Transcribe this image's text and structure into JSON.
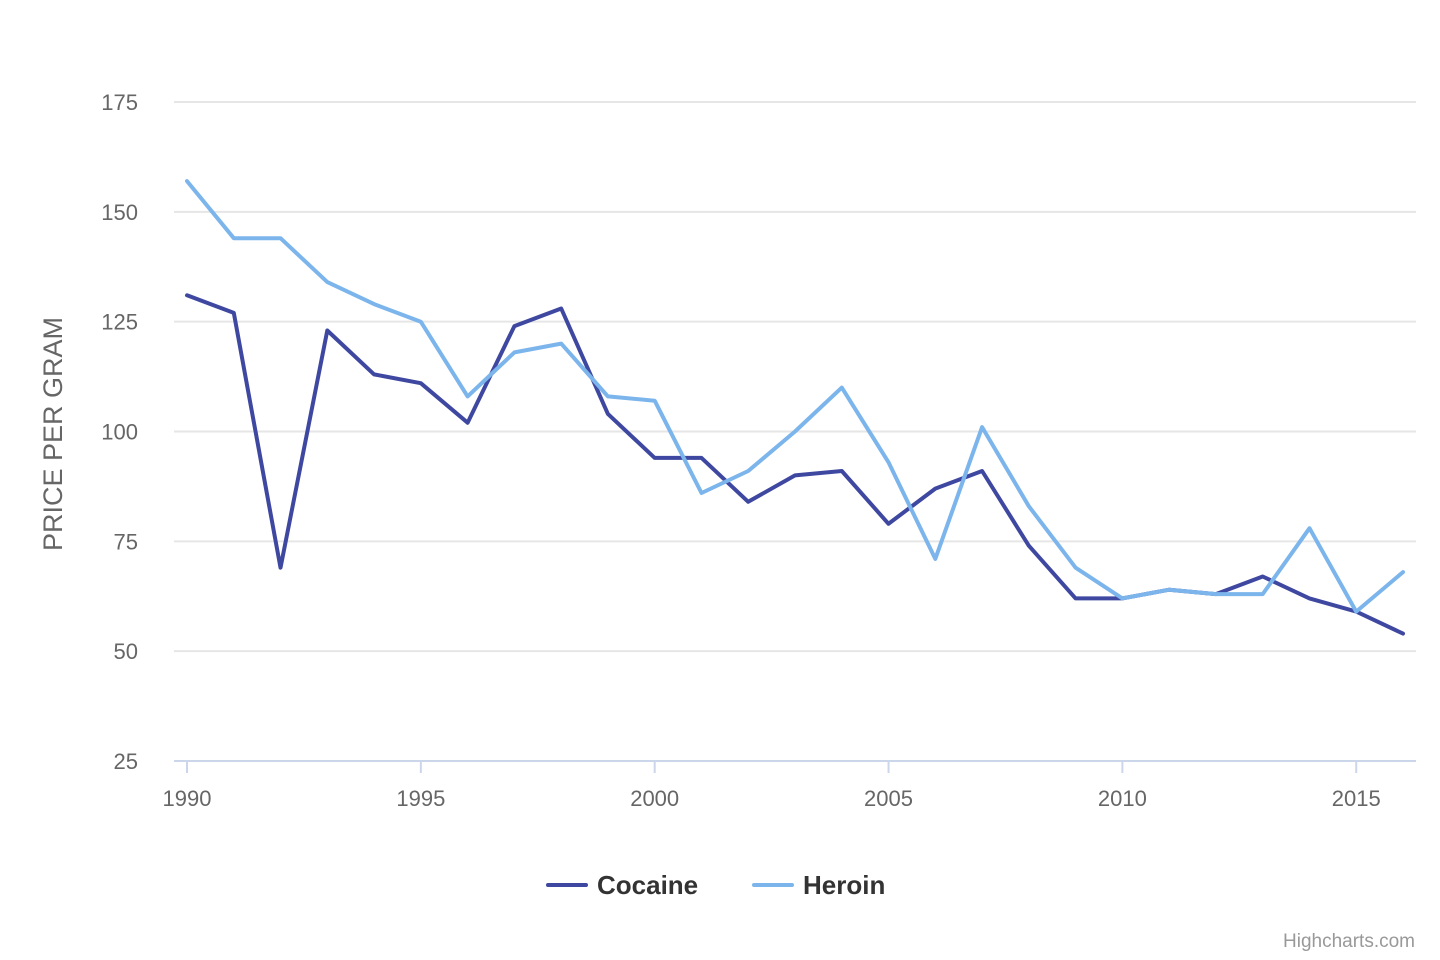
{
  "chart_data": {
    "type": "line",
    "ylabel": "PRICE PER GRAM",
    "ylim": [
      25,
      175
    ],
    "yticks": [
      25,
      50,
      75,
      100,
      125,
      150,
      175
    ],
    "xlim": [
      1990,
      2016
    ],
    "xticks": [
      1990,
      1995,
      2000,
      2005,
      2010,
      2015
    ],
    "grid": true,
    "legend_position": "bottom-center",
    "x": [
      1990,
      1991,
      1992,
      1993,
      1994,
      1995,
      1996,
      1997,
      1998,
      1999,
      2000,
      2001,
      2002,
      2003,
      2004,
      2005,
      2006,
      2007,
      2008,
      2009,
      2010,
      2011,
      2012,
      2013,
      2014,
      2015,
      2016
    ],
    "series": [
      {
        "name": "Cocaine",
        "color": "#3f48a0",
        "values": [
          131,
          127,
          69,
          123,
          113,
          111,
          102,
          124,
          128,
          104,
          94,
          94,
          84,
          90,
          91,
          79,
          87,
          91,
          74,
          62,
          62,
          64,
          63,
          67,
          62,
          59,
          54
        ]
      },
      {
        "name": "Heroin",
        "color": "#7cb5ec",
        "values": [
          157,
          144,
          144,
          134,
          129,
          125,
          108,
          118,
          120,
          108,
          107,
          86,
          91,
          100,
          110,
          93,
          71,
          101,
          83,
          69,
          62,
          64,
          63,
          63,
          78,
          59,
          68
        ]
      }
    ]
  },
  "credits": "Highcharts.com"
}
